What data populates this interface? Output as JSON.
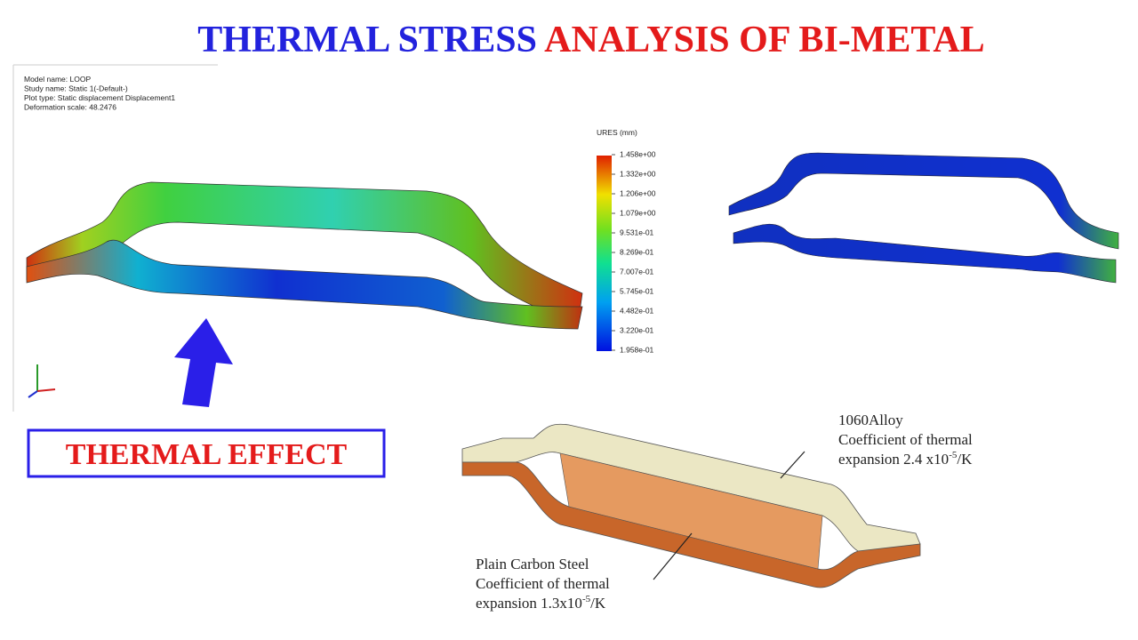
{
  "header": {
    "title_part1": "THERMAL STRESS",
    "title_part2": "ANALYSIS OF BI-METAL"
  },
  "simulation": {
    "info": [
      "Model name: LOOP",
      "Study name: Static 1(-Default-)",
      "Plot type: Static displacement Displacement1",
      "Deformation scale: 48.2476"
    ],
    "legend_title": "URES (mm)",
    "legend_labels": [
      "1.458e+00",
      "1.332e+00",
      "1.206e+00",
      "1.079e+00",
      "9.531e-01",
      "8.269e-01",
      "7.007e-01",
      "5.745e-01",
      "4.482e-01",
      "3.220e-01",
      "1.958e-01"
    ]
  },
  "callout": "THERMAL EFFECT",
  "diagram": {
    "top_material": {
      "name": "1060Alloy",
      "line1": "Coefficient of thermal",
      "line2": "expansion 2.4 x10",
      "exponent": "-5",
      "unit": "/K"
    },
    "bottom_material": {
      "name": "Plain Carbon Steel",
      "line1": "Coefficient of thermal",
      "line2": "expansion 1.3x10",
      "exponent": "-5",
      "unit": "/K"
    }
  }
}
